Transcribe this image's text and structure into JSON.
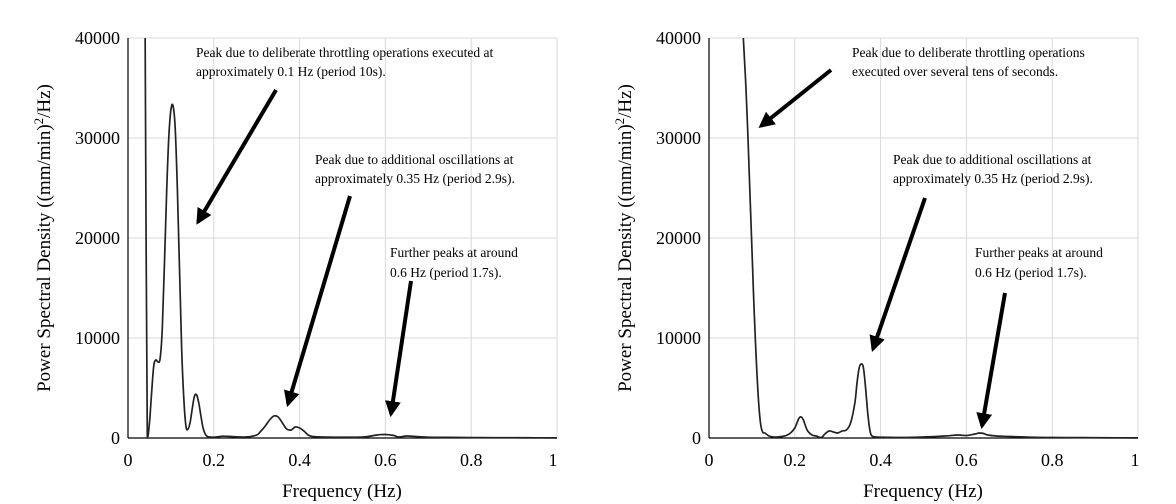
{
  "chart_data": [
    {
      "type": "line",
      "xlabel": "Frequency (Hz)",
      "ylabel_main": "Power Spectral Density ((mm/min)",
      "ylabel_sup": "2",
      "ylabel_end": "/Hz)",
      "xlim": [
        0,
        1
      ],
      "ylim": [
        0,
        40000
      ],
      "xticks": [
        "0",
        "0.2",
        "0.4",
        "0.6",
        "0.8",
        "1"
      ],
      "yticks": [
        "0",
        "10000",
        "20000",
        "30000",
        "40000"
      ],
      "grid": true,
      "series": [
        {
          "x": [
            0.04,
            0.045,
            0.05,
            0.055,
            0.06,
            0.065,
            0.07,
            0.075,
            0.08,
            0.085,
            0.09,
            0.095,
            0.1,
            0.105,
            0.11,
            0.115,
            0.12,
            0.125,
            0.13,
            0.135,
            0.14,
            0.145,
            0.15,
            0.155,
            0.16,
            0.165,
            0.17,
            0.175,
            0.18,
            0.185,
            0.19,
            0.2,
            0.21,
            0.22,
            0.24,
            0.26,
            0.28,
            0.3,
            0.31,
            0.32,
            0.33,
            0.34,
            0.35,
            0.36,
            0.37,
            0.38,
            0.39,
            0.4,
            0.41,
            0.42,
            0.43,
            0.45,
            0.5,
            0.55,
            0.58,
            0.6,
            0.62,
            0.63,
            0.65,
            0.67,
            0.7,
            0.75,
            0.8,
            0.85,
            0.9,
            0.95,
            1.0
          ],
          "y": [
            40000,
            0,
            1500,
            4500,
            7200,
            7800,
            7600,
            8000,
            11000,
            17500,
            24500,
            30000,
            32800,
            33200,
            31000,
            25000,
            17000,
            9000,
            4000,
            1200,
            900,
            1600,
            3000,
            4200,
            4300,
            3500,
            2200,
            1000,
            400,
            150,
            100,
            80,
            120,
            180,
            150,
            100,
            120,
            300,
            700,
            1200,
            1800,
            2200,
            2100,
            1500,
            900,
            800,
            1100,
            1000,
            700,
            300,
            150,
            100,
            80,
            100,
            300,
            350,
            250,
            100,
            200,
            150,
            80,
            60,
            40,
            30,
            30,
            20,
            10
          ]
        }
      ],
      "annotations": [
        {
          "line1": "Peak due to deliberate throttling operations executed at",
          "line2": "approximately 0.1 Hz (period 10s)."
        },
        {
          "line1": "Peak due to additional oscillations at",
          "line2": "approximately 0.35 Hz (period 2.9s)."
        },
        {
          "line1": "Further peaks at around",
          "line2": "0.6 Hz (period 1.7s)."
        }
      ]
    },
    {
      "type": "line",
      "xlabel": "Frequency (Hz)",
      "ylabel_main": "Power Spectral Density ((mm/min)",
      "ylabel_sup": "2",
      "ylabel_end": "/Hz)",
      "xlim": [
        0,
        1
      ],
      "ylim": [
        0,
        40000
      ],
      "xticks": [
        "0",
        "0.2",
        "0.4",
        "0.6",
        "0.8",
        "1"
      ],
      "yticks": [
        "0",
        "10000",
        "20000",
        "30000",
        "40000"
      ],
      "grid": true,
      "series": [
        {
          "x": [
            0.08,
            0.085,
            0.09,
            0.095,
            0.1,
            0.105,
            0.11,
            0.115,
            0.12,
            0.125,
            0.13,
            0.14,
            0.15,
            0.16,
            0.17,
            0.18,
            0.19,
            0.2,
            0.205,
            0.21,
            0.215,
            0.22,
            0.225,
            0.23,
            0.24,
            0.25,
            0.26,
            0.265,
            0.27,
            0.28,
            0.29,
            0.3,
            0.31,
            0.32,
            0.33,
            0.34,
            0.345,
            0.35,
            0.355,
            0.36,
            0.365,
            0.37,
            0.375,
            0.38,
            0.39,
            0.4,
            0.45,
            0.5,
            0.55,
            0.58,
            0.6,
            0.62,
            0.63,
            0.64,
            0.65,
            0.67,
            0.7,
            0.75,
            0.8,
            0.85,
            0.9,
            0.95,
            1.0
          ],
          "y": [
            40000,
            36000,
            31000,
            25000,
            19000,
            13000,
            8000,
            4000,
            1500,
            600,
            500,
            200,
            100,
            100,
            150,
            250,
            500,
            1000,
            1500,
            2000,
            2100,
            1800,
            1200,
            700,
            300,
            200,
            50,
            150,
            400,
            700,
            600,
            500,
            700,
            800,
            1500,
            3500,
            5500,
            7000,
            7400,
            7000,
            5000,
            2500,
            800,
            200,
            100,
            80,
            50,
            100,
            200,
            300,
            250,
            400,
            500,
            450,
            300,
            200,
            150,
            80,
            50,
            40,
            30,
            20,
            10
          ]
        }
      ],
      "annotations": [
        {
          "line1": "Peak due to deliberate throttling operations",
          "line2": "executed over several tens of seconds."
        },
        {
          "line1": "Peak due to additional oscillations at",
          "line2": "approximately 0.35 Hz (period 2.9s)."
        },
        {
          "line1": "Further peaks at around",
          "line2": "0.6 Hz (period 1.7s)."
        }
      ]
    }
  ]
}
